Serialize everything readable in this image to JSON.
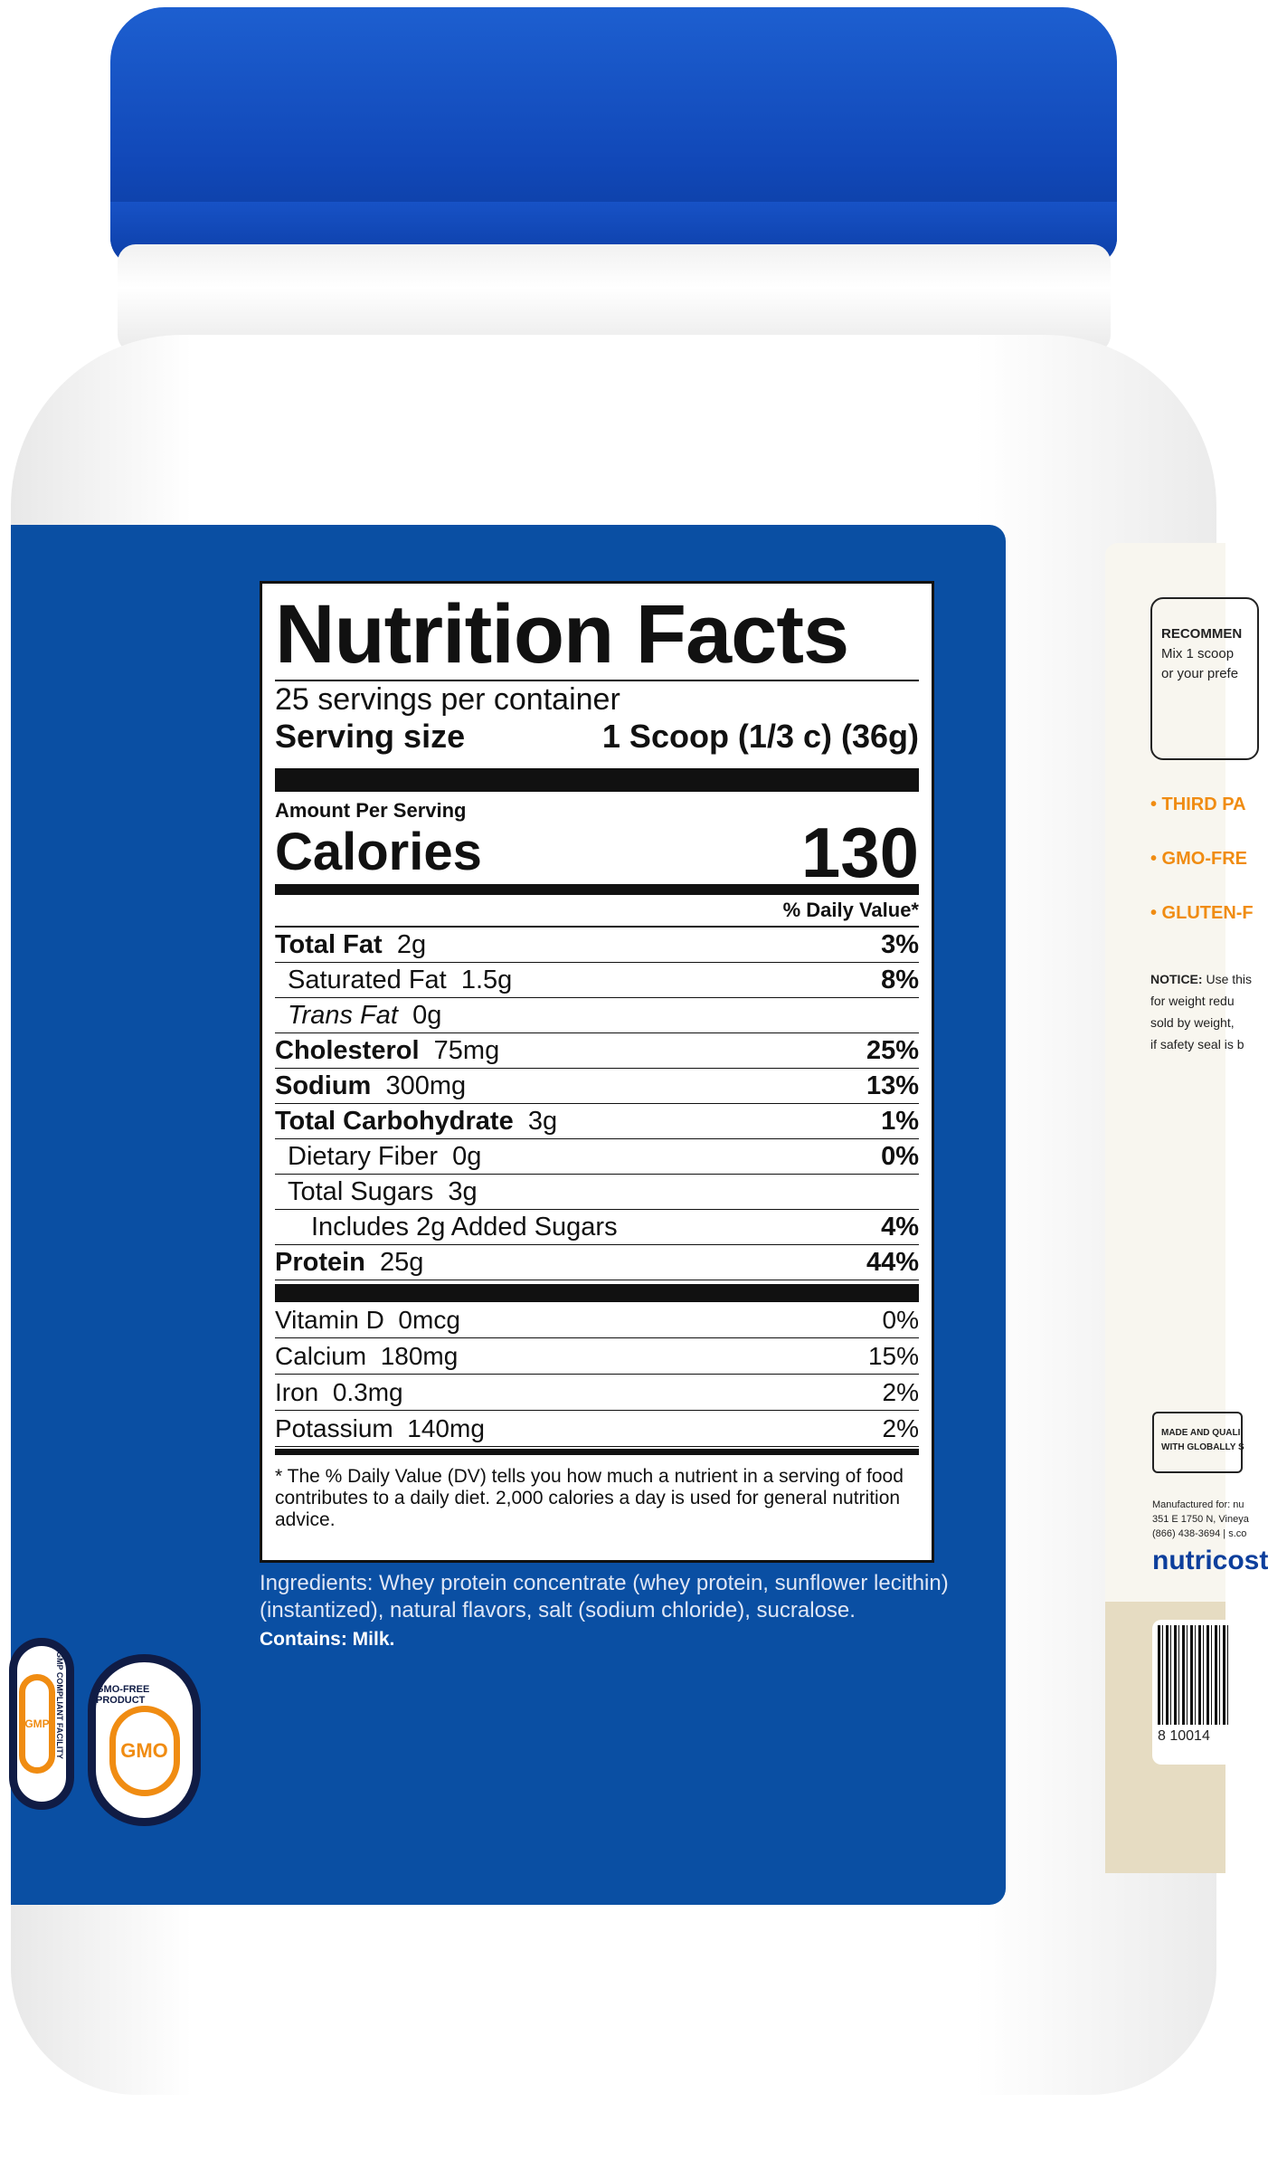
{
  "nutrition": {
    "title": "Nutrition Facts",
    "servings": "25 servings per container",
    "serving_size_label": "Serving size",
    "serving_size_value": "1 Scoop (1/3 c) (36g)",
    "amount_per_serving": "Amount Per Serving",
    "calories_label": "Calories",
    "calories_value": "130",
    "dv_header": "% Daily Value*",
    "rows": [
      {
        "label": "Total Fat",
        "amount": "2g",
        "dv": "3%"
      },
      {
        "label": "Saturated Fat",
        "amount": "1.5g",
        "dv": "8%"
      },
      {
        "label": "Trans Fat",
        "amount": "0g",
        "dv": ""
      },
      {
        "label": "Cholesterol",
        "amount": "75mg",
        "dv": "25%"
      },
      {
        "label": "Sodium",
        "amount": "300mg",
        "dv": "13%"
      },
      {
        "label": "Total Carbohydrate",
        "amount": "3g",
        "dv": "1%"
      },
      {
        "label": "Dietary Fiber",
        "amount": "0g",
        "dv": "0%"
      },
      {
        "label": "Total Sugars",
        "amount": "3g",
        "dv": ""
      },
      {
        "label": "Includes 2g Added Sugars",
        "amount": "",
        "dv": "4%"
      },
      {
        "label": "Protein",
        "amount": "25g",
        "dv": "44%"
      }
    ],
    "vitamins": [
      {
        "label": "Vitamin D",
        "amount": "0mcg",
        "dv": "0%"
      },
      {
        "label": "Calcium",
        "amount": "180mg",
        "dv": "15%"
      },
      {
        "label": "Iron",
        "amount": "0.3mg",
        "dv": "2%"
      },
      {
        "label": "Potassium",
        "amount": "140mg",
        "dv": "2%"
      }
    ],
    "footnote": "* The % Daily Value (DV) tells you how much a nutrient in a serving of food contributes to a daily diet. 2,000 calories a day is used for general nutrition advice."
  },
  "ingredients": "Ingredients: Whey protein concentrate (whey protein, sunflower lecithin) (instantized), natural flavors, salt (sodium chloride), sucralose.",
  "contains": "Contains: Milk.",
  "badges": {
    "gmp_ring": "GMP COMPLIANT FACILITY",
    "gmp_center": "GMP",
    "gmo_ring": "GMO-FREE PRODUCT",
    "gmo_center": "GMO"
  },
  "side": {
    "rec_title": "RECOMMEN",
    "rec_line1": "Mix 1 scoop",
    "rec_line2": "or your prefe",
    "bullets": [
      "• THIRD PA",
      "• GMO-FRE",
      "• GLUTEN-F"
    ],
    "notice_bold": "NOTICE:",
    "notice_lines": [
      "Use this",
      "for weight redu",
      "sold by weight,",
      "if safety seal is b"
    ],
    "made_lines": [
      "MADE AND QUALI",
      "WITH GLOBALLY S"
    ],
    "mfg_lines": [
      "Manufactured for: nu",
      "351 E 1750 N, Vineya",
      "(866) 438-3694 | s.co"
    ],
    "logo": "nutricost",
    "barcode_digits": "8  10014"
  },
  "colors": {
    "cap": "#1148b8",
    "label": "#0a4fa3",
    "accent": "#f08c12",
    "badge_ring": "#101c45"
  }
}
